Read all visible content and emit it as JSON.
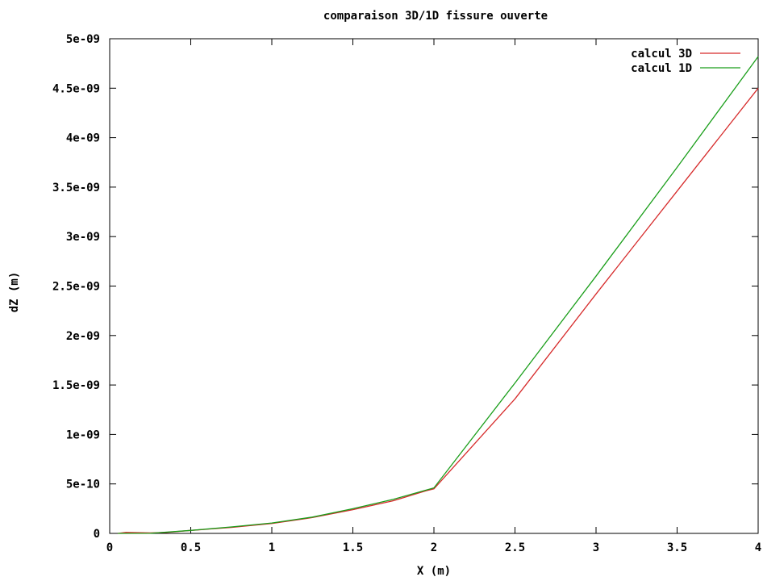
{
  "chart_data": {
    "type": "line",
    "title": "comparaison 3D/1D fissure ouverte",
    "xlabel": "X (m)",
    "ylabel": "dZ (m)",
    "xlim": [
      0,
      4
    ],
    "ylim": [
      0,
      5e-09
    ],
    "x_ticks": [
      "0",
      "0.5",
      "1",
      "1.5",
      "2",
      "2.5",
      "3",
      "3.5",
      "4"
    ],
    "y_ticks": [
      "0",
      "5e-10",
      "1e-09",
      "1.5e-09",
      "2e-09",
      "2.5e-09",
      "3e-09",
      "3.5e-09",
      "4e-09",
      "4.5e-09",
      "5e-09"
    ],
    "grid": false,
    "legend_position": "top-right",
    "series": [
      {
        "name": "calcul 3D",
        "color": "#d62a2a",
        "points": [
          [
            0.05,
            0
          ],
          [
            0.1,
            1e-11
          ],
          [
            0.25,
            5e-12
          ],
          [
            0.35,
            1e-11
          ],
          [
            0.5,
            3e-11
          ],
          [
            0.75,
            6e-11
          ],
          [
            1.0,
            1e-10
          ],
          [
            1.25,
            1.6e-10
          ],
          [
            1.5,
            2.4e-10
          ],
          [
            1.75,
            3.3e-10
          ],
          [
            1.95,
            4.3e-10
          ],
          [
            2.0,
            4.5e-10
          ],
          [
            2.5,
            1.36e-09
          ],
          [
            3.0,
            2.42e-09
          ],
          [
            3.5,
            3.46e-09
          ],
          [
            4.0,
            4.5e-09
          ]
        ]
      },
      {
        "name": "calcul 1D",
        "color": "#1a9e1a",
        "points": [
          [
            0.05,
            0
          ],
          [
            0.25,
            1e-12
          ],
          [
            0.5,
            3e-11
          ],
          [
            0.75,
            6.5e-11
          ],
          [
            1.0,
            1.05e-10
          ],
          [
            1.25,
            1.65e-10
          ],
          [
            1.5,
            2.5e-10
          ],
          [
            1.75,
            3.45e-10
          ],
          [
            2.0,
            4.6e-10
          ],
          [
            2.5,
            1.52e-09
          ],
          [
            3.0,
            2.6e-09
          ],
          [
            3.5,
            3.7e-09
          ],
          [
            4.0,
            4.82e-09
          ]
        ]
      }
    ]
  }
}
